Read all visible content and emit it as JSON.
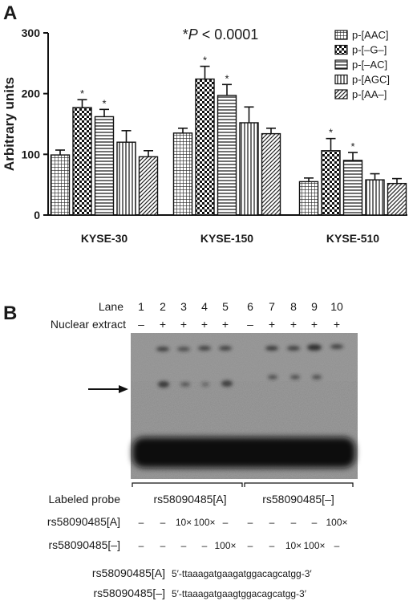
{
  "panel_a": {
    "letter": "A"
  },
  "panel_b": {
    "letter": "B",
    "lane_label": "Lane",
    "lanes": [
      "1",
      "2",
      "3",
      "4",
      "5",
      "6",
      "7",
      "8",
      "9",
      "10"
    ],
    "nuclear_extract_label": "Nuclear extract",
    "nuclear_extract": [
      "–",
      "+",
      "+",
      "+",
      "+",
      "–",
      "+",
      "+",
      "+",
      "+"
    ],
    "labeled_probe_label": "Labeled probe",
    "probe_groups": [
      "rs58090485[A]",
      "rs58090485[–]"
    ],
    "competitor_a_label": "rs58090485[A]",
    "competitor_a": [
      "–",
      "–",
      "10×",
      "100×",
      "–",
      "–",
      "–",
      "–",
      "–",
      "100×"
    ],
    "competitor_del_label": "rs58090485[–]",
    "competitor_del": [
      "–",
      "–",
      "–",
      "–",
      "100×",
      "–",
      "–",
      "10×",
      "100×",
      "–"
    ],
    "seq_a_label": "rs58090485[A]",
    "seq_a": "5′-ttaaagatgaagatggacagcatgg-3′",
    "seq_del_label": "rs58090485[–]",
    "seq_del": "5′-ttaaagatgaagtggacagcatgg-3′"
  },
  "chart_data": {
    "type": "bar",
    "ylabel": "Arbitrary units",
    "xlabel": "",
    "ylim": [
      0,
      300
    ],
    "yticks": [
      0,
      100,
      200,
      300
    ],
    "annotation": "*P < 0.0001",
    "annotation_italic": "P",
    "legend_position": "top-right",
    "categories": [
      "KYSE-30",
      "KYSE-150",
      "KYSE-510"
    ],
    "series": [
      {
        "name": "p-[AAC]",
        "pattern": "grid",
        "values": [
          99,
          135,
          55
        ],
        "errors": [
          8,
          8,
          6
        ],
        "sig": [
          false,
          false,
          false
        ]
      },
      {
        "name": "p-[–G–]",
        "pattern": "checker",
        "values": [
          177,
          224,
          106
        ],
        "errors": [
          13,
          21,
          20
        ],
        "sig": [
          true,
          true,
          true
        ]
      },
      {
        "name": "p-[–AC]",
        "pattern": "hlines",
        "values": [
          162,
          197,
          90
        ],
        "errors": [
          12,
          18,
          13
        ],
        "sig": [
          true,
          true,
          true
        ]
      },
      {
        "name": "p-[AGC]",
        "pattern": "vlines",
        "values": [
          120,
          152,
          58
        ],
        "errors": [
          19,
          26,
          10
        ],
        "sig": [
          false,
          false,
          false
        ]
      },
      {
        "name": "p-[AA–]",
        "pattern": "diag",
        "values": [
          96,
          134,
          52
        ],
        "errors": [
          10,
          9,
          8
        ],
        "sig": [
          false,
          false,
          false
        ]
      }
    ]
  }
}
